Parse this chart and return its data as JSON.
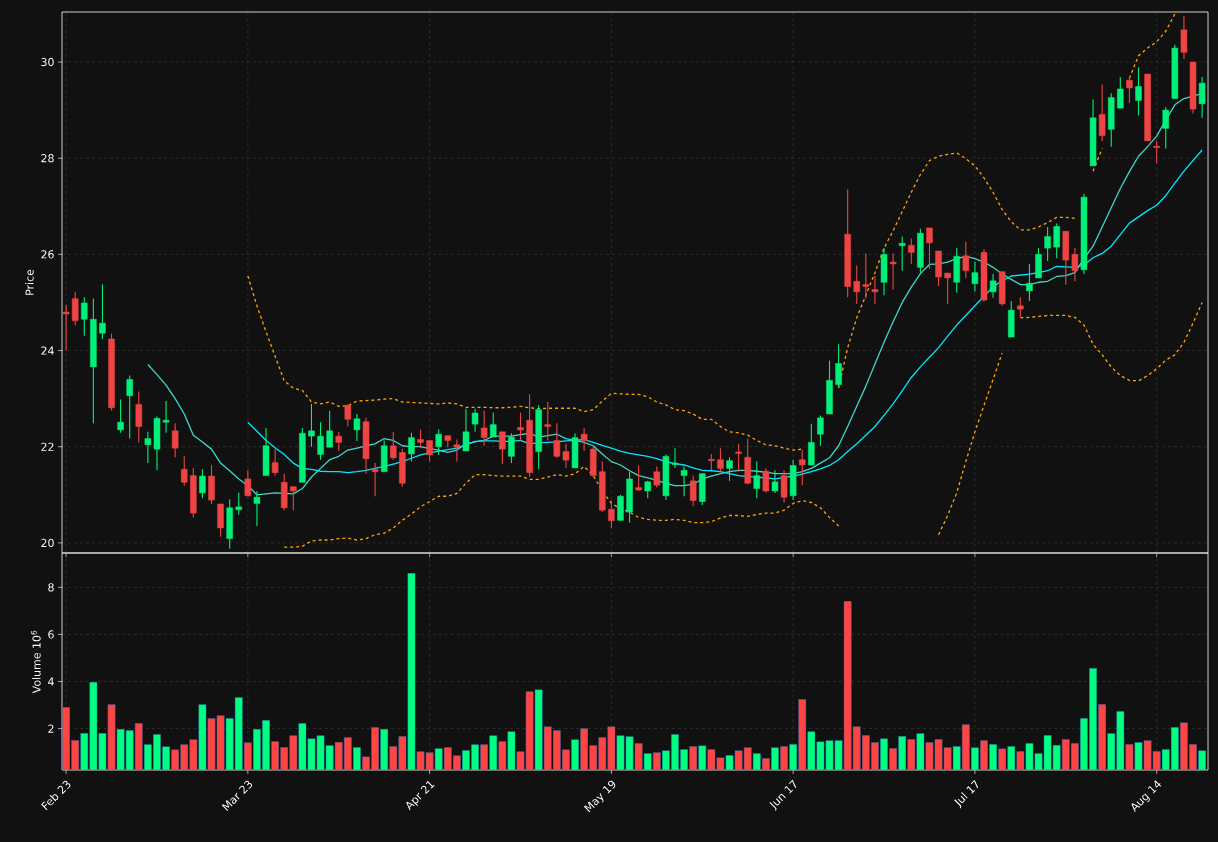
{
  "chart_data": [
    {
      "type": "candlestick",
      "ylabel": "Price",
      "categories": [
        null,
        null,
        null,
        null,
        null,
        null,
        null,
        null,
        null,
        null,
        null,
        null,
        null,
        null,
        null,
        null,
        null,
        null,
        null,
        null,
        null,
        null,
        null,
        null,
        null,
        null,
        null,
        null,
        null,
        null,
        null,
        null,
        null,
        null,
        null,
        null,
        null,
        null,
        null,
        null,
        null,
        null,
        null,
        null,
        null,
        null,
        null,
        null,
        null,
        null,
        null,
        null,
        null,
        null,
        null,
        null,
        null,
        null,
        null,
        null,
        null,
        null,
        null,
        null,
        null,
        null,
        null,
        null,
        null,
        null,
        null,
        null,
        null,
        null,
        null,
        null,
        null,
        null,
        null,
        null,
        null,
        null,
        null,
        null,
        null,
        null,
        null,
        null,
        null,
        null,
        null,
        null,
        null,
        null,
        null,
        null,
        null,
        null,
        null,
        null,
        null,
        null,
        null,
        null,
        null,
        null,
        null,
        null,
        null,
        null,
        null,
        null,
        null,
        null,
        null,
        null,
        null,
        null,
        null,
        null,
        null,
        null,
        null,
        null,
        null,
        null
      ],
      "ohlc": [
        [
          24.8,
          24.95,
          24.0,
          24.76
        ],
        [
          25.08,
          25.22,
          24.52,
          24.62
        ],
        [
          24.65,
          25.11,
          24.31,
          24.99
        ],
        [
          23.66,
          25.08,
          22.49,
          24.65
        ],
        [
          24.36,
          25.38,
          24.24,
          24.57
        ],
        [
          24.24,
          24.35,
          22.75,
          22.81
        ],
        [
          22.35,
          22.98,
          22.29,
          22.51
        ],
        [
          23.06,
          23.48,
          22.17,
          23.4
        ],
        [
          22.88,
          23.15,
          22.09,
          22.42
        ],
        [
          22.04,
          22.31,
          21.66,
          22.17
        ],
        [
          21.95,
          22.63,
          21.51,
          22.59
        ],
        [
          22.51,
          22.95,
          22.29,
          22.55
        ],
        [
          22.33,
          22.49,
          21.78,
          21.97
        ],
        [
          21.53,
          21.8,
          21.19,
          21.26
        ],
        [
          21.4,
          21.56,
          20.53,
          20.62
        ],
        [
          21.04,
          21.53,
          20.93,
          21.39
        ],
        [
          21.39,
          21.62,
          20.81,
          20.89
        ],
        [
          20.81,
          20.81,
          20.13,
          20.31
        ],
        [
          20.09,
          20.91,
          19.88,
          20.73
        ],
        [
          20.69,
          21.05,
          20.59,
          20.75
        ],
        [
          21.33,
          21.51,
          20.97,
          20.98
        ],
        [
          20.82,
          21.08,
          20.35,
          20.95
        ],
        [
          21.4,
          22.39,
          21.4,
          22.02
        ],
        [
          21.67,
          21.95,
          21.4,
          21.46
        ],
        [
          21.26,
          21.44,
          20.68,
          20.73
        ],
        [
          21.17,
          21.17,
          20.68,
          21.08
        ],
        [
          21.26,
          22.39,
          21.26,
          22.28
        ],
        [
          22.22,
          22.89,
          22.0,
          22.33
        ],
        [
          21.84,
          22.51,
          21.73,
          22.22
        ],
        [
          21.99,
          22.75,
          21.99,
          22.33
        ],
        [
          22.22,
          22.31,
          21.91,
          22.09
        ],
        [
          22.86,
          22.88,
          22.42,
          22.57
        ],
        [
          22.35,
          22.68,
          22.12,
          22.58
        ],
        [
          22.52,
          22.6,
          21.44,
          21.75
        ],
        [
          21.53,
          21.66,
          20.97,
          21.48
        ],
        [
          21.48,
          22.13,
          21.48,
          22.02
        ],
        [
          22.02,
          22.31,
          21.73,
          21.77
        ],
        [
          21.88,
          21.95,
          21.17,
          21.24
        ],
        [
          21.85,
          22.29,
          21.69,
          22.19
        ],
        [
          22.15,
          22.36,
          21.97,
          22.09
        ],
        [
          22.13,
          22.13,
          21.69,
          21.83
        ],
        [
          22.0,
          22.36,
          21.83,
          22.26
        ],
        [
          22.23,
          22.24,
          21.99,
          22.13
        ],
        [
          22.04,
          22.15,
          21.69,
          21.99
        ],
        [
          21.91,
          22.79,
          21.91,
          22.31
        ],
        [
          22.47,
          22.79,
          22.31,
          22.7
        ],
        [
          22.39,
          22.75,
          22.02,
          22.19
        ],
        [
          22.2,
          22.71,
          22.2,
          22.46
        ],
        [
          22.31,
          22.31,
          21.64,
          21.95
        ],
        [
          21.8,
          22.28,
          21.66,
          22.2
        ],
        [
          22.4,
          22.71,
          22.13,
          22.35
        ],
        [
          22.55,
          23.09,
          21.37,
          21.46
        ],
        [
          21.9,
          22.86,
          21.53,
          22.77
        ],
        [
          22.46,
          22.93,
          22.13,
          22.42
        ],
        [
          22.13,
          22.49,
          21.77,
          21.8
        ],
        [
          21.9,
          22.06,
          21.56,
          21.72
        ],
        [
          21.56,
          22.28,
          21.56,
          22.19
        ],
        [
          22.26,
          22.39,
          21.91,
          22.13
        ],
        [
          21.95,
          22.0,
          21.37,
          21.4
        ],
        [
          21.48,
          21.69,
          20.64,
          20.68
        ],
        [
          20.7,
          20.88,
          20.31,
          20.46
        ],
        [
          20.47,
          21.0,
          20.46,
          20.97
        ],
        [
          20.64,
          21.48,
          20.42,
          21.33
        ],
        [
          21.15,
          21.61,
          21.08,
          21.1
        ],
        [
          21.08,
          21.29,
          20.93,
          21.27
        ],
        [
          21.48,
          21.59,
          21.15,
          21.2
        ],
        [
          20.98,
          21.84,
          20.89,
          21.8
        ],
        [
          21.63,
          21.97,
          21.56,
          21.66
        ],
        [
          21.4,
          21.59,
          20.97,
          21.51
        ],
        [
          21.29,
          21.4,
          20.76,
          20.88
        ],
        [
          20.86,
          21.44,
          20.79,
          21.44
        ],
        [
          21.74,
          21.85,
          21.51,
          21.71
        ],
        [
          21.73,
          21.97,
          21.48,
          21.55
        ],
        [
          21.55,
          21.78,
          21.29,
          21.71
        ],
        [
          21.89,
          22.06,
          21.48,
          21.86
        ],
        [
          21.78,
          22.17,
          21.22,
          21.24
        ],
        [
          21.13,
          21.69,
          20.93,
          21.4
        ],
        [
          21.49,
          21.55,
          21.05,
          21.08
        ],
        [
          21.08,
          21.51,
          21.04,
          21.27
        ],
        [
          21.4,
          21.51,
          20.84,
          20.95
        ],
        [
          20.98,
          21.73,
          20.89,
          21.61
        ],
        [
          21.73,
          21.93,
          21.2,
          21.62
        ],
        [
          21.62,
          22.48,
          21.61,
          22.09
        ],
        [
          22.26,
          22.65,
          22.02,
          22.6
        ],
        [
          22.68,
          23.79,
          22.68,
          23.38
        ],
        [
          23.29,
          24.13,
          23.26,
          23.73
        ],
        [
          26.42,
          27.35,
          25.11,
          25.33
        ],
        [
          25.44,
          25.77,
          24.97,
          25.22
        ],
        [
          25.37,
          26.02,
          25.08,
          25.33
        ],
        [
          25.27,
          25.55,
          24.97,
          25.22
        ],
        [
          25.42,
          26.13,
          25.15,
          26.0
        ],
        [
          25.84,
          26.02,
          25.27,
          25.8
        ],
        [
          26.18,
          26.37,
          25.66,
          26.23
        ],
        [
          26.19,
          26.33,
          25.8,
          26.04
        ],
        [
          25.73,
          26.53,
          25.62,
          26.44
        ],
        [
          26.55,
          26.55,
          25.7,
          26.24
        ],
        [
          26.07,
          26.07,
          25.34,
          25.53
        ],
        [
          25.61,
          25.62,
          24.97,
          25.51
        ],
        [
          25.42,
          26.13,
          25.2,
          25.96
        ],
        [
          25.97,
          26.26,
          25.51,
          25.66
        ],
        [
          25.39,
          25.85,
          25.22,
          25.62
        ],
        [
          26.04,
          26.11,
          25.02,
          25.05
        ],
        [
          25.22,
          25.59,
          25.1,
          25.45
        ],
        [
          25.64,
          25.64,
          24.93,
          24.97
        ],
        [
          24.28,
          25.03,
          24.28,
          24.84
        ],
        [
          24.93,
          25.11,
          24.68,
          24.86
        ],
        [
          25.24,
          25.8,
          25.03,
          25.4
        ],
        [
          25.51,
          26.13,
          25.51,
          26.0
        ],
        [
          26.13,
          26.57,
          25.86,
          26.37
        ],
        [
          26.15,
          26.64,
          25.92,
          26.58
        ],
        [
          26.48,
          26.48,
          25.37,
          25.88
        ],
        [
          26.0,
          26.13,
          25.44,
          25.66
        ],
        [
          25.68,
          27.26,
          25.59,
          27.19
        ],
        [
          27.84,
          29.22,
          27.84,
          28.84
        ],
        [
          28.91,
          29.53,
          28.35,
          28.47
        ],
        [
          28.6,
          29.35,
          28.24,
          29.26
        ],
        [
          29.04,
          29.69,
          29.04,
          29.44
        ],
        [
          29.62,
          29.69,
          29.15,
          29.46
        ],
        [
          29.2,
          29.89,
          28.89,
          29.49
        ],
        [
          29.75,
          29.75,
          28.36,
          28.36
        ],
        [
          28.25,
          28.36,
          27.89,
          28.22
        ],
        [
          28.62,
          29.06,
          28.2,
          29.0
        ],
        [
          29.24,
          30.36,
          29.24,
          30.29
        ],
        [
          30.67,
          30.96,
          30.06,
          30.2
        ],
        [
          30.0,
          30.0,
          28.93,
          29.02
        ],
        [
          29.13,
          29.69,
          28.84,
          29.56
        ]
      ],
      "colors": [
        "#ef4444",
        "#ef4444",
        "#00f07a",
        "#00f07a",
        "#00f07a",
        "#ef4444",
        "#00f07a",
        "#00f07a",
        "#ef4444",
        "#00f07a",
        "#00f07a",
        "#00f07a",
        "#ef4444",
        "#ef4444",
        "#ef4444",
        "#00f07a",
        "#ef4444",
        "#ef4444",
        "#00f07a",
        "#00f07a",
        "#ef4444",
        "#00f07a",
        "#00f07a",
        "#ef4444",
        "#ef4444",
        "#ef4444",
        "#00f07a",
        "#00f07a",
        "#00f07a",
        "#00f07a",
        "#ef4444",
        "#ef4444",
        "#00f07a",
        "#ef4444",
        "#ef4444",
        "#00f07a",
        "#ef4444",
        "#ef4444",
        "#00f07a",
        "#ef4444",
        "#ef4444",
        "#00f07a",
        "#ef4444",
        "#ef4444",
        "#00f07a",
        "#00f07a",
        "#ef4444",
        "#00f07a",
        "#ef4444",
        "#00f07a",
        "#ef4444",
        "#ef4444",
        "#00f07a",
        "#ef4444",
        "#ef4444",
        "#ef4444",
        "#00f07a",
        "#ef4444",
        "#ef4444",
        "#ef4444",
        "#ef4444",
        "#00f07a",
        "#00f07a",
        "#ef4444",
        "#00f07a",
        "#ef4444",
        "#00f07a",
        "#00f07a",
        "#00f07a",
        "#ef4444",
        "#00f07a",
        "#ef4444",
        "#ef4444",
        "#00f07a",
        "#ef4444",
        "#ef4444",
        "#00f07a",
        "#ef4444",
        "#00f07a",
        "#ef4444",
        "#00f07a",
        "#ef4444",
        "#00f07a",
        "#00f07a",
        "#00f07a",
        "#00f07a",
        "#ef4444",
        "#ef4444",
        "#ef4444",
        "#ef4444",
        "#00f07a",
        "#ef4444",
        "#00f07a",
        "#ef4444",
        "#00f07a",
        "#ef4444",
        "#ef4444",
        "#ef4444",
        "#00f07a",
        "#ef4444",
        "#00f07a",
        "#ef4444",
        "#00f07a",
        "#ef4444",
        "#00f07a",
        "#ef4444",
        "#00f07a",
        "#00f07a",
        "#00f07a",
        "#00f07a",
        "#ef4444",
        "#ef4444",
        "#00f07a",
        "#00f07a",
        "#ef4444",
        "#00f07a",
        "#00f07a",
        "#ef4444",
        "#00f07a",
        "#ef4444",
        "#ef4444",
        "#00f07a",
        "#00f07a",
        "#ef4444",
        "#ef4444",
        "#00f07a"
      ],
      "series": [
        {
          "type": "line",
          "color": "#40d8c8",
          "values": [
            null,
            null,
            null,
            null,
            null,
            null,
            null,
            null,
            null,
            23.71,
            23.5,
            23.28,
            23.0,
            22.68,
            22.24,
            22.1,
            21.95,
            21.66,
            21.5,
            21.33,
            21.19,
            21.0,
            21.02,
            21.04,
            21.03,
            21.02,
            21.13,
            21.37,
            21.55,
            21.73,
            21.8,
            21.93,
            21.97,
            22.02,
            22.06,
            22.17,
            22.13,
            22.02,
            22.0,
            22.0,
            21.96,
            21.93,
            21.88,
            21.93,
            22.06,
            22.1,
            22.13,
            22.22,
            22.22,
            22.22,
            22.25,
            22.28,
            22.2,
            22.23,
            22.26,
            22.17,
            22.13,
            22.09,
            22.02,
            21.85,
            21.69,
            21.62,
            21.5,
            21.4,
            21.35,
            21.3,
            21.24,
            21.19,
            21.19,
            21.22,
            21.33,
            21.39,
            21.44,
            21.48,
            21.51,
            21.51,
            21.49,
            21.47,
            21.44,
            21.44,
            21.44,
            21.48,
            21.55,
            21.66,
            21.77,
            22.02,
            22.42,
            22.84,
            23.26,
            23.72,
            24.17,
            24.6,
            25.0,
            25.32,
            25.6,
            25.79,
            25.8,
            25.84,
            25.91,
            25.96,
            25.91,
            25.84,
            25.73,
            25.59,
            25.48,
            25.37,
            25.37,
            25.42,
            25.44,
            25.54,
            25.56,
            25.62,
            25.91,
            26.17,
            26.57,
            26.97,
            27.37,
            27.72,
            28.04,
            28.24,
            28.46,
            28.79,
            29.11,
            29.24,
            29.29,
            29.35
          ]
        },
        {
          "type": "line",
          "color": "#00e8ff",
          "values": [
            null,
            null,
            null,
            null,
            null,
            null,
            null,
            null,
            null,
            null,
            null,
            null,
            null,
            null,
            null,
            null,
            null,
            null,
            null,
            null,
            22.51,
            22.32,
            22.13,
            21.98,
            21.84,
            21.66,
            21.55,
            21.53,
            21.49,
            21.48,
            21.48,
            21.46,
            21.48,
            21.51,
            21.55,
            21.59,
            21.64,
            21.69,
            21.76,
            21.83,
            21.87,
            21.91,
            21.94,
            21.97,
            22.04,
            22.11,
            22.12,
            22.12,
            22.11,
            22.11,
            22.13,
            22.06,
            22.08,
            22.09,
            22.1,
            22.12,
            22.13,
            22.15,
            22.09,
            22.03,
            21.97,
            21.91,
            21.86,
            21.83,
            21.8,
            21.75,
            21.69,
            21.65,
            21.62,
            21.56,
            21.51,
            21.5,
            21.48,
            21.44,
            21.4,
            21.38,
            21.37,
            21.35,
            21.33,
            21.36,
            21.39,
            21.43,
            21.48,
            21.54,
            21.61,
            21.73,
            21.9,
            22.06,
            22.24,
            22.42,
            22.65,
            22.89,
            23.16,
            23.44,
            23.66,
            23.86,
            24.06,
            24.3,
            24.53,
            24.73,
            24.93,
            25.13,
            25.33,
            25.45,
            25.55,
            25.57,
            25.59,
            25.62,
            25.66,
            25.75,
            25.74,
            25.73,
            25.78,
            25.93,
            26.02,
            26.17,
            26.41,
            26.65,
            26.78,
            26.91,
            27.02,
            27.22,
            27.48,
            27.73,
            27.95,
            28.17
          ]
        },
        {
          "type": "line",
          "color": "#ffa500",
          "line_style": "dashed",
          "values": [
            null,
            null,
            null,
            null,
            null,
            null,
            null,
            null,
            null,
            null,
            null,
            null,
            null,
            null,
            null,
            null,
            null,
            null,
            null,
            null,
            25.55,
            24.93,
            24.39,
            23.88,
            23.37,
            23.22,
            23.17,
            22.93,
            22.89,
            22.93,
            22.84,
            22.85,
            22.95,
            22.96,
            22.97,
            22.99,
            23.0,
            22.93,
            22.92,
            22.91,
            22.9,
            22.89,
            22.91,
            22.89,
            22.82,
            22.82,
            22.82,
            22.81,
            22.81,
            22.82,
            22.84,
            22.81,
            22.79,
            22.8,
            22.8,
            22.8,
            22.8,
            22.73,
            22.77,
            22.95,
            23.11,
            23.1,
            23.09,
            23.09,
            23.04,
            22.93,
            22.87,
            22.77,
            22.75,
            22.68,
            22.57,
            22.57,
            22.42,
            22.31,
            22.29,
            22.24,
            22.13,
            22.04,
            22.02,
            21.97,
            21.93,
            21.95,
            null,
            null,
            null,
            23.22,
            24.06,
            24.68,
            25.15,
            25.62,
            26.13,
            26.49,
            26.89,
            27.29,
            27.66,
            27.95,
            28.04,
            28.08,
            28.11,
            27.99,
            27.84,
            27.59,
            27.29,
            26.93,
            26.68,
            26.51,
            26.51,
            26.57,
            26.66,
            26.77,
            26.77,
            26.75,
            null,
            27.73,
            28.2,
            null,
            null,
            29.66,
            30.13,
            30.29,
            30.42,
            30.64,
            31.0,
            null,
            null,
            null
          ]
        },
        {
          "type": "line",
          "color": "#ffa500",
          "line_style": "dashed",
          "values": [
            null,
            null,
            null,
            null,
            null,
            null,
            null,
            null,
            null,
            null,
            null,
            null,
            null,
            null,
            null,
            null,
            null,
            null,
            null,
            null,
            null,
            null,
            null,
            null,
            19.91,
            19.91,
            19.93,
            20.04,
            20.06,
            20.06,
            20.09,
            20.1,
            20.06,
            20.09,
            20.17,
            20.2,
            20.31,
            20.47,
            20.6,
            20.75,
            20.86,
            20.97,
            20.97,
            21.03,
            21.24,
            21.42,
            21.42,
            21.4,
            21.39,
            21.39,
            21.39,
            21.32,
            21.32,
            21.37,
            21.42,
            21.39,
            21.44,
            21.59,
            21.4,
            21.08,
            20.82,
            20.71,
            20.64,
            20.53,
            20.49,
            20.47,
            20.47,
            20.49,
            20.47,
            20.42,
            20.42,
            20.44,
            20.52,
            20.57,
            20.57,
            20.55,
            20.59,
            20.62,
            20.62,
            20.68,
            20.82,
            20.88,
            20.84,
            20.73,
            20.53,
            20.35,
            null,
            null,
            null,
            null,
            null,
            null,
            null,
            null,
            null,
            null,
            20.17,
            20.57,
            21.04,
            21.69,
            22.31,
            22.86,
            23.4,
            23.95,
            null,
            24.68,
            24.69,
            24.71,
            24.73,
            24.73,
            24.73,
            24.69,
            24.53,
            24.13,
            23.91,
            23.66,
            23.48,
            23.38,
            23.37,
            23.48,
            23.62,
            23.8,
            23.91,
            24.17,
            24.57,
            25.0
          ]
        }
      ],
      "ylim": [
        19.79,
        31.04
      ],
      "yticks": [
        20,
        22,
        24,
        26,
        28,
        30
      ],
      "grid": true,
      "tick_labels": "y"
    },
    {
      "type": "bar",
      "ylabel": "Volume  10$^{6}$",
      "categories": [
        "Feb 23",
        null,
        null,
        null,
        null,
        null,
        null,
        null,
        null,
        null,
        null,
        null,
        null,
        null,
        null,
        null,
        null,
        null,
        null,
        null,
        "Mar 23",
        null,
        null,
        null,
        null,
        null,
        null,
        null,
        null,
        null,
        null,
        null,
        null,
        null,
        null,
        null,
        null,
        null,
        null,
        null,
        "Apr 21",
        null,
        null,
        null,
        null,
        null,
        null,
        null,
        null,
        null,
        null,
        null,
        null,
        null,
        null,
        null,
        null,
        null,
        null,
        null,
        "May 19",
        null,
        null,
        null,
        null,
        null,
        null,
        null,
        null,
        null,
        null,
        null,
        null,
        null,
        null,
        null,
        null,
        null,
        null,
        null,
        "Jun 17",
        null,
        null,
        null,
        null,
        null,
        null,
        null,
        null,
        null,
        null,
        null,
        null,
        null,
        null,
        null,
        null,
        null,
        null,
        null,
        "Jul 17",
        null,
        null,
        null,
        null,
        null,
        null,
        null,
        null,
        null,
        null,
        null,
        null,
        null,
        null,
        null,
        null,
        null,
        null,
        null,
        "Aug 14",
        null,
        null,
        null,
        null,
        null
      ],
      "values": [
        2.9,
        1.5,
        1.8,
        3.97,
        1.8,
        3.02,
        1.97,
        1.92,
        2.22,
        1.32,
        1.75,
        1.23,
        1.1,
        1.32,
        1.53,
        3.02,
        2.43,
        2.55,
        2.43,
        3.32,
        1.4,
        1.97,
        2.35,
        1.45,
        1.2,
        1.7,
        2.22,
        1.57,
        1.7,
        1.28,
        1.42,
        1.62,
        1.2,
        0.8,
        2.05,
        1.97,
        1.24,
        1.67,
        8.6,
        1.02,
        0.98,
        1.15,
        1.2,
        0.85,
        1.07,
        1.32,
        1.32,
        1.7,
        1.45,
        1.87,
        1.02,
        3.57,
        3.65,
        2.08,
        1.92,
        1.1,
        1.53,
        2.0,
        1.28,
        1.62,
        2.08,
        1.7,
        1.66,
        1.37,
        0.94,
        0.98,
        1.06,
        1.75,
        1.11,
        1.24,
        1.27,
        1.11,
        0.76,
        0.86,
        1.06,
        1.19,
        0.94,
        0.73,
        1.19,
        1.24,
        1.33,
        3.24,
        1.87,
        1.44,
        1.49,
        1.49,
        7.41,
        2.08,
        1.71,
        1.41,
        1.57,
        1.16,
        1.67,
        1.54,
        1.79,
        1.41,
        1.54,
        1.19,
        1.24,
        2.17,
        1.19,
        1.49,
        1.33,
        1.14,
        1.24,
        1.03,
        1.37,
        0.94,
        1.71,
        1.29,
        1.54,
        1.37,
        2.43,
        4.56,
        3.03,
        1.79,
        2.73,
        1.33,
        1.41,
        1.49,
        1.03,
        1.11,
        2.05,
        2.25,
        1.33,
        1.06
      ],
      "colors": [
        "#ff4444",
        "#ff4444",
        "#00ff80",
        "#00ff80",
        "#00ff80",
        "#ff4444",
        "#00ff80",
        "#00ff80",
        "#ff4444",
        "#00ff80",
        "#00ff80",
        "#00ff80",
        "#ff4444",
        "#ff4444",
        "#ff4444",
        "#00ff80",
        "#ff4444",
        "#ff4444",
        "#00ff80",
        "#00ff80",
        "#ff4444",
        "#00ff80",
        "#00ff80",
        "#ff4444",
        "#ff4444",
        "#ff4444",
        "#00ff80",
        "#00ff80",
        "#00ff80",
        "#00ff80",
        "#ff4444",
        "#ff4444",
        "#00ff80",
        "#ff4444",
        "#ff4444",
        "#00ff80",
        "#ff4444",
        "#ff4444",
        "#00ff80",
        "#ff4444",
        "#ff4444",
        "#00ff80",
        "#ff4444",
        "#ff4444",
        "#00ff80",
        "#00ff80",
        "#ff4444",
        "#00ff80",
        "#ff4444",
        "#00ff80",
        "#ff4444",
        "#ff4444",
        "#00ff80",
        "#ff4444",
        "#ff4444",
        "#ff4444",
        "#00ff80",
        "#ff4444",
        "#ff4444",
        "#ff4444",
        "#ff4444",
        "#00ff80",
        "#00ff80",
        "#ff4444",
        "#00ff80",
        "#ff4444",
        "#00ff80",
        "#00ff80",
        "#00ff80",
        "#ff4444",
        "#00ff80",
        "#ff4444",
        "#ff4444",
        "#00ff80",
        "#ff4444",
        "#ff4444",
        "#00ff80",
        "#ff4444",
        "#00ff80",
        "#ff4444",
        "#00ff80",
        "#ff4444",
        "#00ff80",
        "#00ff80",
        "#00ff80",
        "#00ff80",
        "#ff4444",
        "#ff4444",
        "#ff4444",
        "#ff4444",
        "#00ff80",
        "#ff4444",
        "#00ff80",
        "#ff4444",
        "#00ff80",
        "#ff4444",
        "#ff4444",
        "#ff4444",
        "#00ff80",
        "#ff4444",
        "#00ff80",
        "#ff4444",
        "#00ff80",
        "#ff4444",
        "#00ff80",
        "#ff4444",
        "#00ff80",
        "#00ff80",
        "#00ff80",
        "#00ff80",
        "#ff4444",
        "#ff4444",
        "#00ff80",
        "#00ff80",
        "#ff4444",
        "#00ff80",
        "#00ff80",
        "#ff4444",
        "#00ff80",
        "#ff4444",
        "#ff4444",
        "#00ff80",
        "#00ff80",
        "#ff4444",
        "#ff4444",
        "#00ff80"
      ],
      "ylim": [
        0.24,
        9.46
      ],
      "yticks": [
        2,
        4,
        6,
        8
      ],
      "grid": true
    }
  ]
}
